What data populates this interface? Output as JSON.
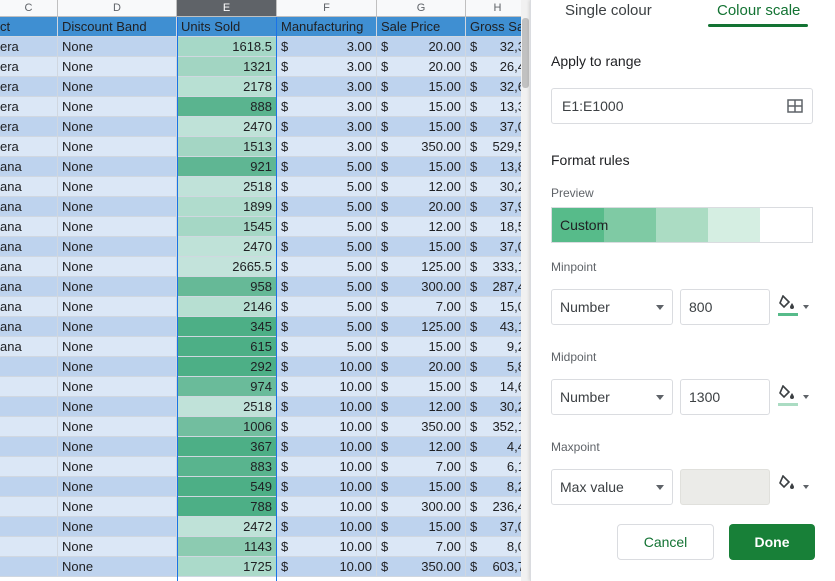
{
  "sheet": {
    "columns": [
      {
        "letter": "C",
        "selected": false
      },
      {
        "letter": "D",
        "selected": false
      },
      {
        "letter": "E",
        "selected": true
      },
      {
        "letter": "F",
        "selected": false
      },
      {
        "letter": "G",
        "selected": false
      },
      {
        "letter": "H",
        "selected": false
      }
    ],
    "header": {
      "product": "ct",
      "discount_band": "Discount Band",
      "units_sold": "Units Sold",
      "manufacturing": "Manufacturing",
      "sale_price": "Sale Price",
      "gross_sales": "Gross Sa"
    },
    "currency_symbol": "$",
    "rows": [
      {
        "product": "era",
        "discount": "None",
        "units": "1618.5",
        "units_color": "#a6d8c7",
        "mfg": "3.00",
        "price": "20.00",
        "gross": "32,3"
      },
      {
        "product": "era",
        "discount": "None",
        "units": "1321",
        "units_color": "#a2d5c2",
        "mfg": "3.00",
        "price": "20.00",
        "gross": "26,4"
      },
      {
        "product": "era",
        "discount": "None",
        "units": "2178",
        "units_color": "#b8e0d3",
        "mfg": "3.00",
        "price": "15.00",
        "gross": "32,6"
      },
      {
        "product": "era",
        "discount": "None",
        "units": "888",
        "units_color": "#5ab48f",
        "mfg": "3.00",
        "price": "15.00",
        "gross": "13,3"
      },
      {
        "product": "era",
        "discount": "None",
        "units": "2470",
        "units_color": "#bfe2d8",
        "mfg": "3.00",
        "price": "15.00",
        "gross": "37,0"
      },
      {
        "product": "era",
        "discount": "None",
        "units": "1513",
        "units_color": "#a4d6c4",
        "mfg": "3.00",
        "price": "350.00",
        "gross": "529,5"
      },
      {
        "product": "ana",
        "discount": "None",
        "units": "921",
        "units_color": "#5fb693",
        "mfg": "5.00",
        "price": "15.00",
        "gross": "13,8"
      },
      {
        "product": "ana",
        "discount": "None",
        "units": "2518",
        "units_color": "#c0e2d9",
        "mfg": "5.00",
        "price": "12.00",
        "gross": "30,2"
      },
      {
        "product": "ana",
        "discount": "None",
        "units": "1899",
        "units_color": "#b0dccd",
        "mfg": "5.00",
        "price": "20.00",
        "gross": "37,9"
      },
      {
        "product": "ana",
        "discount": "None",
        "units": "1545",
        "units_color": "#a5d7c5",
        "mfg": "5.00",
        "price": "12.00",
        "gross": "18,5"
      },
      {
        "product": "ana",
        "discount": "None",
        "units": "2470",
        "units_color": "#bfe2d8",
        "mfg": "5.00",
        "price": "15.00",
        "gross": "37,0"
      },
      {
        "product": "ana",
        "discount": "None",
        "units": "2665.5",
        "units_color": "#c3e3db",
        "mfg": "5.00",
        "price": "125.00",
        "gross": "333,1"
      },
      {
        "product": "ana",
        "discount": "None",
        "units": "958",
        "units_color": "#66b997",
        "mfg": "5.00",
        "price": "300.00",
        "gross": "287,4"
      },
      {
        "product": "ana",
        "discount": "None",
        "units": "2146",
        "units_color": "#b7dfd2",
        "mfg": "5.00",
        "price": "7.00",
        "gross": "15,0"
      },
      {
        "product": "ana",
        "discount": "None",
        "units": "345",
        "units_color": "#4daf86",
        "mfg": "5.00",
        "price": "125.00",
        "gross": "43,1"
      },
      {
        "product": "ana",
        "discount": "None",
        "units": "615",
        "units_color": "#4daf86",
        "mfg": "5.00",
        "price": "15.00",
        "gross": "9,2"
      },
      {
        "product": "",
        "discount": "None",
        "units": "292",
        "units_color": "#4daf86",
        "mfg": "10.00",
        "price": "20.00",
        "gross": "5,8"
      },
      {
        "product": "",
        "discount": "None",
        "units": "974",
        "units_color": "#6abb9a",
        "mfg": "10.00",
        "price": "15.00",
        "gross": "14,6"
      },
      {
        "product": "",
        "discount": "None",
        "units": "2518",
        "units_color": "#c0e2d9",
        "mfg": "10.00",
        "price": "12.00",
        "gross": "30,2"
      },
      {
        "product": "",
        "discount": "None",
        "units": "1006",
        "units_color": "#72be9f",
        "mfg": "10.00",
        "price": "350.00",
        "gross": "352,1"
      },
      {
        "product": "",
        "discount": "None",
        "units": "367",
        "units_color": "#4daf86",
        "mfg": "10.00",
        "price": "12.00",
        "gross": "4,4"
      },
      {
        "product": "",
        "discount": "None",
        "units": "883",
        "units_color": "#59b48e",
        "mfg": "10.00",
        "price": "7.00",
        "gross": "6,1"
      },
      {
        "product": "",
        "discount": "None",
        "units": "549",
        "units_color": "#4daf86",
        "mfg": "10.00",
        "price": "15.00",
        "gross": "8,2"
      },
      {
        "product": "",
        "discount": "None",
        "units": "788",
        "units_color": "#4daf86",
        "mfg": "10.00",
        "price": "300.00",
        "gross": "236,4"
      },
      {
        "product": "",
        "discount": "None",
        "units": "2472",
        "units_color": "#bfe2d8",
        "mfg": "10.00",
        "price": "15.00",
        "gross": "37,0"
      },
      {
        "product": "",
        "discount": "None",
        "units": "1143",
        "units_color": "#8ccbb1",
        "mfg": "10.00",
        "price": "7.00",
        "gross": "8,0"
      },
      {
        "product": "",
        "discount": "None",
        "units": "1725",
        "units_color": "#abdaca",
        "mfg": "10.00",
        "price": "350.00",
        "gross": "603,7"
      }
    ]
  },
  "panel": {
    "tabs": {
      "single": "Single colour",
      "scale": "Colour scale"
    },
    "apply_label": "Apply to range",
    "range_value": "E1:E1000",
    "format_rules": "Format rules",
    "preview_label": "Preview",
    "preview_text": "Custom",
    "preview_colors": [
      "#57bb8a",
      "#7fcaa4",
      "#abdcc3",
      "#d5eee2",
      "#ffffff"
    ],
    "minpoint": {
      "label": "Minpoint",
      "type": "Number",
      "value": "800",
      "color": "#57bb8a"
    },
    "midpoint": {
      "label": "Midpoint",
      "type": "Number",
      "value": "1300",
      "color": "#abdcc3"
    },
    "maxpoint": {
      "label": "Maxpoint",
      "type": "Max value",
      "value": "",
      "color": "#ffffff"
    },
    "cancel": "Cancel",
    "done": "Done",
    "accent_color": "#188038"
  }
}
